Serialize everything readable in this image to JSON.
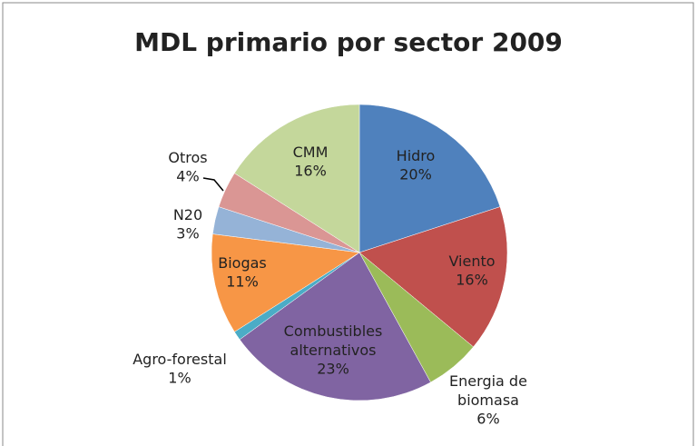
{
  "chart_data": {
    "type": "pie",
    "title": "MDL primario por sector 2009",
    "categories": [
      "Hidro",
      "Viento",
      "Energia de biomasa",
      "Combustibles alternativos",
      "Agro-forestal",
      "Biogas",
      "N20",
      "Otros",
      "CMM"
    ],
    "values": [
      20,
      16,
      6,
      23,
      1,
      11,
      3,
      4,
      16
    ],
    "value_labels": [
      "20%",
      "16%",
      "6%",
      "23%",
      "1%",
      "11%",
      "3%",
      "4%",
      "16%"
    ],
    "colors": [
      "#4f81bd",
      "#c0504d",
      "#9bbb59",
      "#8064a2",
      "#4bacc6",
      "#f79646",
      "#95b3d7",
      "#da9694",
      "#c4d79b"
    ]
  }
}
